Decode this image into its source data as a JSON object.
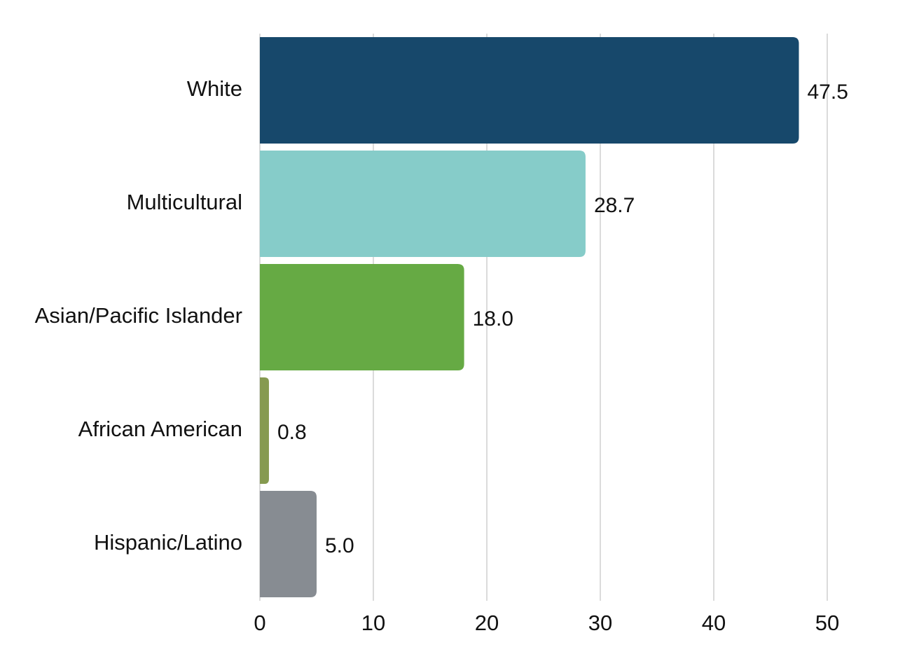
{
  "chart_data": {
    "type": "bar",
    "orientation": "horizontal",
    "categories": [
      "White",
      "Multicultural",
      "Asian/Pacific Islander",
      "African American",
      "Hispanic/Latino"
    ],
    "values": [
      47.5,
      28.7,
      18.0,
      0.8,
      5.0
    ],
    "value_labels": [
      "47.5",
      "28.7",
      "18.0",
      "0.8",
      "5.0"
    ],
    "colors": [
      "#17486b",
      "#86ccc9",
      "#66aa44",
      "#869a50",
      "#878c92"
    ],
    "xlim": [
      0,
      50
    ],
    "xticks": [
      0,
      10,
      20,
      30,
      40,
      50
    ],
    "xtick_labels": [
      "0",
      "10",
      "20",
      "30",
      "40",
      "50"
    ],
    "grid": "vertical",
    "legend": "none"
  }
}
